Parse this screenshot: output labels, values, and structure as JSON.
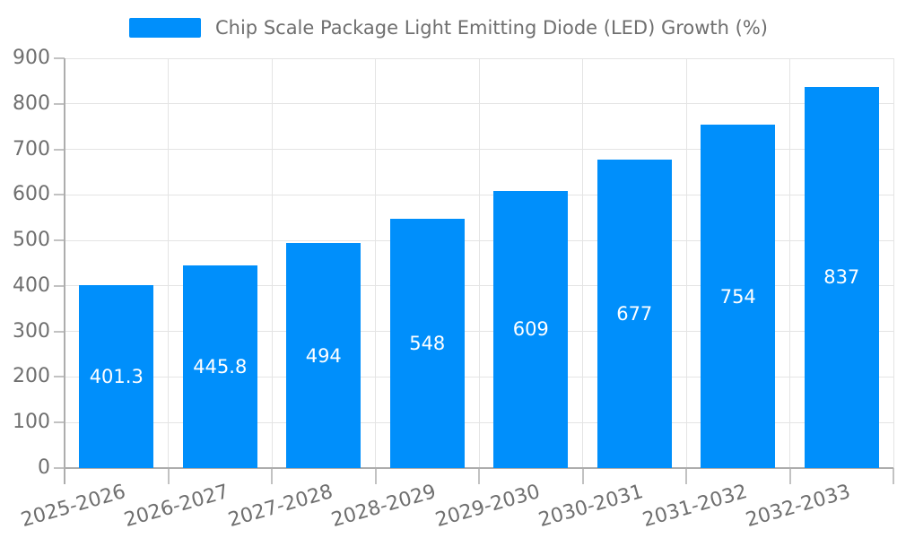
{
  "chart_data": {
    "type": "bar",
    "title": "Chip Scale Package Light Emitting Diode (LED) Growth (%)",
    "categories": [
      "2025-2026",
      "2026-2027",
      "2027-2028",
      "2028-2029",
      "2029-2030",
      "2030-2031",
      "2031-2032",
      "2032-2033"
    ],
    "values": [
      401.3,
      445.8,
      494,
      548,
      609,
      677,
      754,
      837
    ],
    "value_labels": [
      "401.3",
      "445.8",
      "494",
      "548",
      "609",
      "677",
      "754",
      "837"
    ],
    "xlabel": "",
    "ylabel": "",
    "ylim": [
      0,
      900
    ],
    "yticks": [
      0,
      100,
      200,
      300,
      400,
      500,
      600,
      700,
      800,
      900
    ],
    "grid": "both",
    "legend_position": "top",
    "colors": {
      "bar": "#008FFB",
      "data_label": "#FFFFFF",
      "axis_label": "#6F6F6F",
      "gridline": "#E4E4E4",
      "axis_line": "#ADADAD",
      "tick": "#C2C2C2"
    }
  }
}
